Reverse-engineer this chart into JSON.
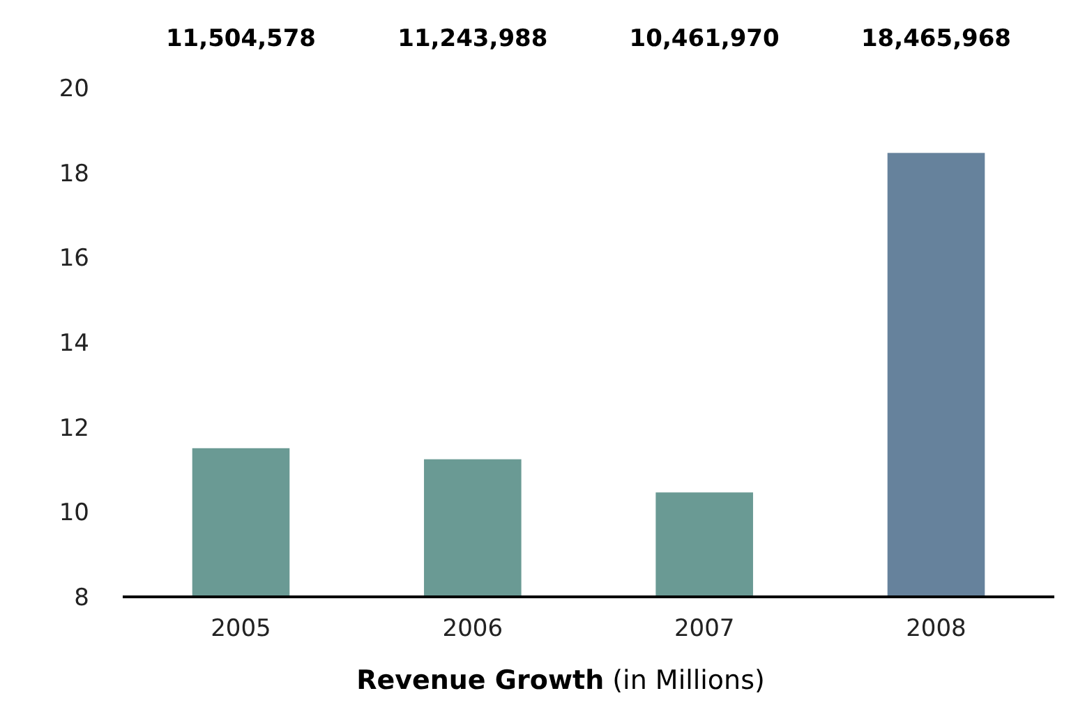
{
  "chart_data": {
    "type": "bar",
    "xlabel": "Revenue Growth (in Millions)",
    "categories": [
      "2005",
      "2006",
      "2007",
      "2008"
    ],
    "values": [
      11.504578,
      11.243988,
      10.46197,
      18.465968
    ],
    "colors": [
      "#6a9a94",
      "#6a9a94",
      "#6a9a94",
      "#66829c"
    ],
    "annotations": [
      "11,504,578",
      "11,243,988",
      "10,461,970",
      "18,465,968"
    ],
    "ylim": [
      8,
      20
    ],
    "yticks": [
      8,
      10,
      12,
      14,
      16,
      18,
      20
    ],
    "grid": false
  }
}
